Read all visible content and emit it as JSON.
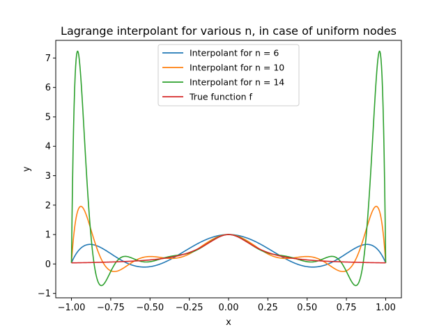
{
  "chart_data": {
    "type": "line",
    "title": "Lagrange interpolant for various n, in case of uniform nodes",
    "xlabel": "x",
    "ylabel": "y",
    "xlim": [
      -1.1,
      1.1
    ],
    "ylim": [
      -1.15,
      7.6
    ],
    "xticks": [
      -1.0,
      -0.75,
      -0.5,
      -0.25,
      0.0,
      0.25,
      0.5,
      0.75,
      1.0
    ],
    "xtick_labels": [
      "−1.00",
      "−0.75",
      "−0.50",
      "−0.25",
      "0.00",
      "0.25",
      "0.50",
      "0.75",
      "1.00"
    ],
    "yticks": [
      -1,
      0,
      1,
      2,
      3,
      4,
      5,
      6,
      7
    ],
    "ytick_labels": [
      "−1",
      "0",
      "1",
      "2",
      "3",
      "4",
      "5",
      "6",
      "7"
    ],
    "grid": false,
    "legend_position": "upper-center",
    "function": "1/(1+25x^2)",
    "domain": [
      -1,
      1
    ],
    "series": [
      {
        "name": "Interpolant for n = 6",
        "n": 6,
        "color": "#1f77b4"
      },
      {
        "name": "Interpolant for n = 10",
        "n": 10,
        "color": "#ff7f0e"
      },
      {
        "name": "Interpolant for n = 14",
        "n": 14,
        "color": "#2ca02c"
      },
      {
        "name": "True function f",
        "n": 0,
        "color": "#d62728"
      }
    ]
  }
}
